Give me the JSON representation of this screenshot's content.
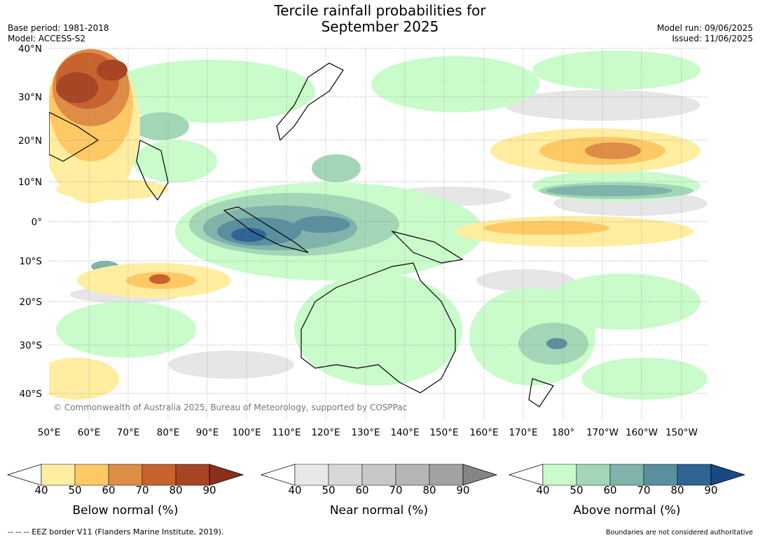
{
  "title_line1": "Tercile rainfall probabilities for",
  "title_line2": "September 2025",
  "meta_left": {
    "base_period": "Base period: 1981-2018",
    "model": "Model: ACCESS-S2"
  },
  "meta_right": {
    "model_run": "Model run: 09/06/2025",
    "issued": "Issued: 11/06/2025"
  },
  "lat_labels": [
    "40°N",
    "30°N",
    "20°N",
    "10°N",
    "0°",
    "10°S",
    "20°S",
    "30°S",
    "40°S"
  ],
  "lon_labels": [
    "50°E",
    "60°E",
    "70°E",
    "80°E",
    "90°E",
    "100°E",
    "110°E",
    "120°E",
    "130°E",
    "140°E",
    "150°E",
    "160°E",
    "170°E",
    "180°",
    "170°W",
    "160°W",
    "150°W"
  ],
  "copyright": "© Commonwealth of Australia 2025, Bureau of Meteorology, supported by COSPPac",
  "legends": [
    {
      "title": "Below normal (%)",
      "ticks": [
        "40",
        "50",
        "60",
        "70",
        "80",
        "90"
      ],
      "colors": [
        "#ffffff",
        "#ffeda0",
        "#fec965",
        "#dd8d45",
        "#c8622f",
        "#a74525",
        "#8c2f1a"
      ]
    },
    {
      "title": "Near normal (%)",
      "ticks": [
        "40",
        "50",
        "60",
        "70",
        "80",
        "90"
      ],
      "colors": [
        "#ffffff",
        "#e8e8e8",
        "#d8d8d8",
        "#c8c8c8",
        "#b5b5b5",
        "#a2a2a2",
        "#858585"
      ]
    },
    {
      "title": "Above normal (%)",
      "ticks": [
        "40",
        "50",
        "60",
        "70",
        "80",
        "90"
      ],
      "colors": [
        "#ffffff",
        "#c9fbcb",
        "#a3d6b6",
        "#80b3ab",
        "#5a8fa0",
        "#2f6494",
        "#174a85"
      ]
    }
  ],
  "footer_left": "--  --  -- EEZ border V11 (Flanders Marine Institute, 2019).",
  "footer_right": "Boundaries are not considered authoritative"
}
